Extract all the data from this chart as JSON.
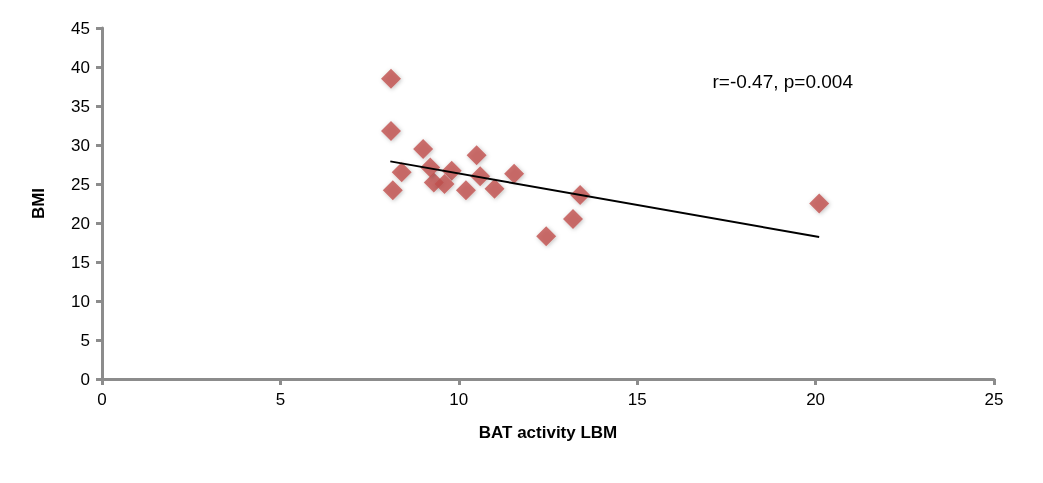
{
  "chart_data": {
    "type": "scatter",
    "xlabel": "BAT activity LBM",
    "ylabel": "BMI",
    "xlim": [
      0,
      25
    ],
    "xticks": [
      0,
      5,
      10,
      15,
      20,
      25
    ],
    "ylim": [
      0,
      45
    ],
    "yticks": [
      0,
      5,
      10,
      15,
      20,
      25,
      30,
      35,
      40,
      45
    ],
    "grid": false,
    "marker": "diamond",
    "annotations": [
      "r=-0.47, p=0.004"
    ],
    "series": [
      {
        "color": "#c0504d",
        "x": [
          8.1,
          8.1,
          8.15,
          8.4,
          9.0,
          9.3,
          9.2,
          9.8,
          10.2,
          10.5,
          10.6,
          11.0,
          11.55,
          9.6,
          13.4,
          13.2,
          12.45,
          20.1
        ],
        "values": [
          38.5,
          31.8,
          24.2,
          26.5,
          29.5,
          25.2,
          27.1,
          26.7,
          24.2,
          28.7,
          26.0,
          24.4,
          26.3,
          25.0,
          23.6,
          20.5,
          18.3,
          22.5
        ]
      },
      {
        "type": "line",
        "color": "#000000",
        "marker": "none",
        "x": [
          8.08,
          20.1
        ],
        "values": [
          27.9,
          18.2
        ]
      }
    ]
  }
}
